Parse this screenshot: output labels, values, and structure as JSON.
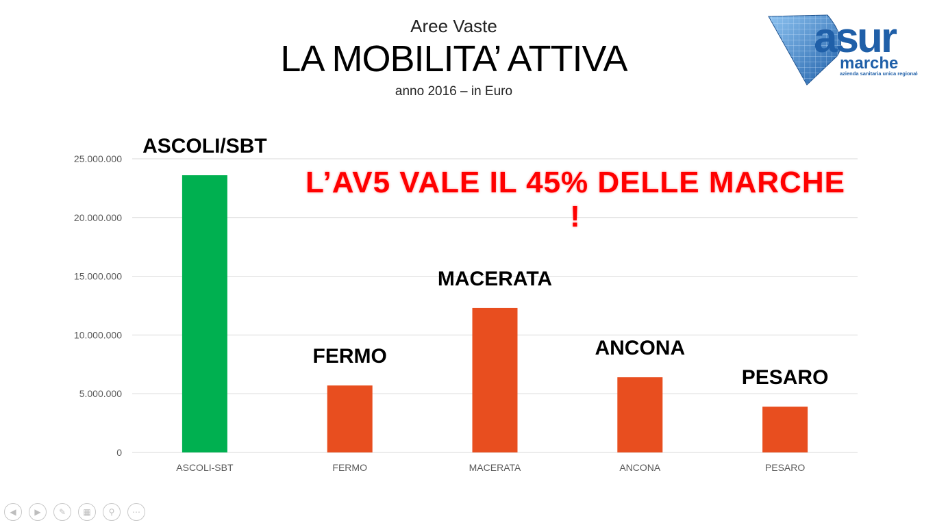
{
  "header": {
    "kicker": "Aree Vaste",
    "title": "LA MOBILITA’ ATTIVA",
    "subtitle": "anno 2016 – in Euro"
  },
  "logo": {
    "text_main": "asur",
    "text_region": "marche",
    "text_tagline": "azienda sanitaria unica regionale",
    "colors": {
      "blue": "#1f5fa8",
      "light": "#5aa0e0"
    }
  },
  "callout": "L’AV5 VALE IL 45% DELLE MARCHE !",
  "chart_data": {
    "type": "bar",
    "categories": [
      "ASCOLI-SBT",
      "FERMO",
      "MACERATA",
      "ANCONA",
      "PESARO"
    ],
    "values": [
      23600000,
      5700000,
      12300000,
      6400000,
      3900000
    ],
    "bar_labels": [
      "ASCOLI/SBT",
      "FERMO",
      "MACERATA",
      "ANCONA",
      "PESARO"
    ],
    "bar_colors": [
      "#00b050",
      "#e84e1f",
      "#e84e1f",
      "#e84e1f",
      "#e84e1f"
    ],
    "ylim": [
      0,
      25000000
    ],
    "yticks": [
      0,
      5000000,
      10000000,
      15000000,
      20000000,
      25000000
    ],
    "ytick_labels": [
      "0",
      "5.000.000",
      "10.000.000",
      "15.000.000",
      "20.000.000",
      "25.000.000"
    ],
    "grid": true
  },
  "controls": [
    {
      "name": "previous-slide",
      "icon": "arrow-left-icon",
      "glyph": "◀"
    },
    {
      "name": "next-slide",
      "icon": "arrow-right-icon",
      "glyph": "▶"
    },
    {
      "name": "pen-tool",
      "icon": "pen-icon",
      "glyph": "✎"
    },
    {
      "name": "see-all-slides",
      "icon": "grid-icon",
      "glyph": "▦"
    },
    {
      "name": "zoom",
      "icon": "magnifier-icon",
      "glyph": "⚲"
    },
    {
      "name": "more-options",
      "icon": "ellipsis-icon",
      "glyph": "⋯"
    }
  ]
}
